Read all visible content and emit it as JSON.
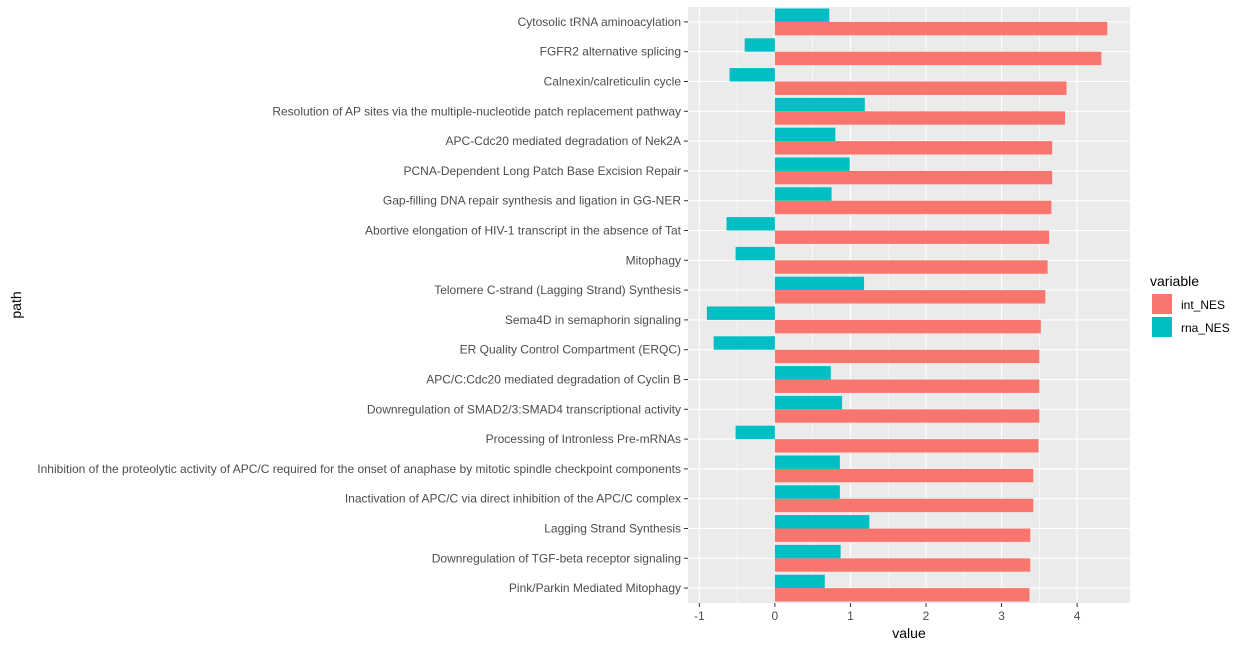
{
  "chart_data": {
    "type": "bar",
    "orientation": "horizontal",
    "xlabel": "value",
    "ylabel": "path",
    "xlim": [
      -1.15,
      4.7
    ],
    "x_ticks": [
      -1,
      0,
      1,
      2,
      3,
      4
    ],
    "grid": true,
    "legend_title": "variable",
    "legend_position": "right",
    "categories": [
      "Cytosolic tRNA aminoacylation",
      "FGFR2 alternative splicing",
      "Calnexin/calreticulin cycle",
      "Resolution of AP sites via the multiple-nucleotide patch replacement pathway",
      "APC-Cdc20 mediated degradation of Nek2A",
      "PCNA-Dependent Long Patch Base Excision Repair",
      "Gap-filling DNA repair synthesis and ligation in GG-NER",
      "Abortive elongation of HIV-1 transcript in the absence of Tat",
      "Mitophagy",
      "Telomere C-strand (Lagging Strand) Synthesis",
      "Sema4D in semaphorin signaling",
      "ER Quality Control Compartment (ERQC)",
      "APC/C:Cdc20 mediated degradation of Cyclin B",
      "Downregulation of SMAD2/3:SMAD4 transcriptional activity",
      "Processing of Intronless Pre-mRNAs",
      "Inhibition of the proteolytic activity of APC/C required for the onset of anaphase by mitotic spindle checkpoint components",
      "Inactivation of APC/C via direct inhibition of the APC/C complex",
      "Lagging Strand Synthesis",
      "Downregulation of TGF-beta receptor signaling",
      "Pink/Parkin Mediated Mitophagy"
    ],
    "series": [
      {
        "name": "int_NES",
        "color": "#F8766D",
        "values": [
          4.4,
          4.32,
          3.86,
          3.84,
          3.67,
          3.67,
          3.66,
          3.63,
          3.61,
          3.58,
          3.52,
          3.5,
          3.5,
          3.5,
          3.49,
          3.42,
          3.42,
          3.38,
          3.38,
          3.37
        ]
      },
      {
        "name": "rna_NES",
        "color": "#00BFC4",
        "values": [
          0.72,
          -0.4,
          -0.6,
          1.19,
          0.8,
          0.99,
          0.75,
          -0.64,
          -0.52,
          1.18,
          -0.9,
          -0.81,
          0.74,
          0.89,
          -0.52,
          0.86,
          0.86,
          1.25,
          0.87,
          0.66
        ]
      }
    ]
  }
}
